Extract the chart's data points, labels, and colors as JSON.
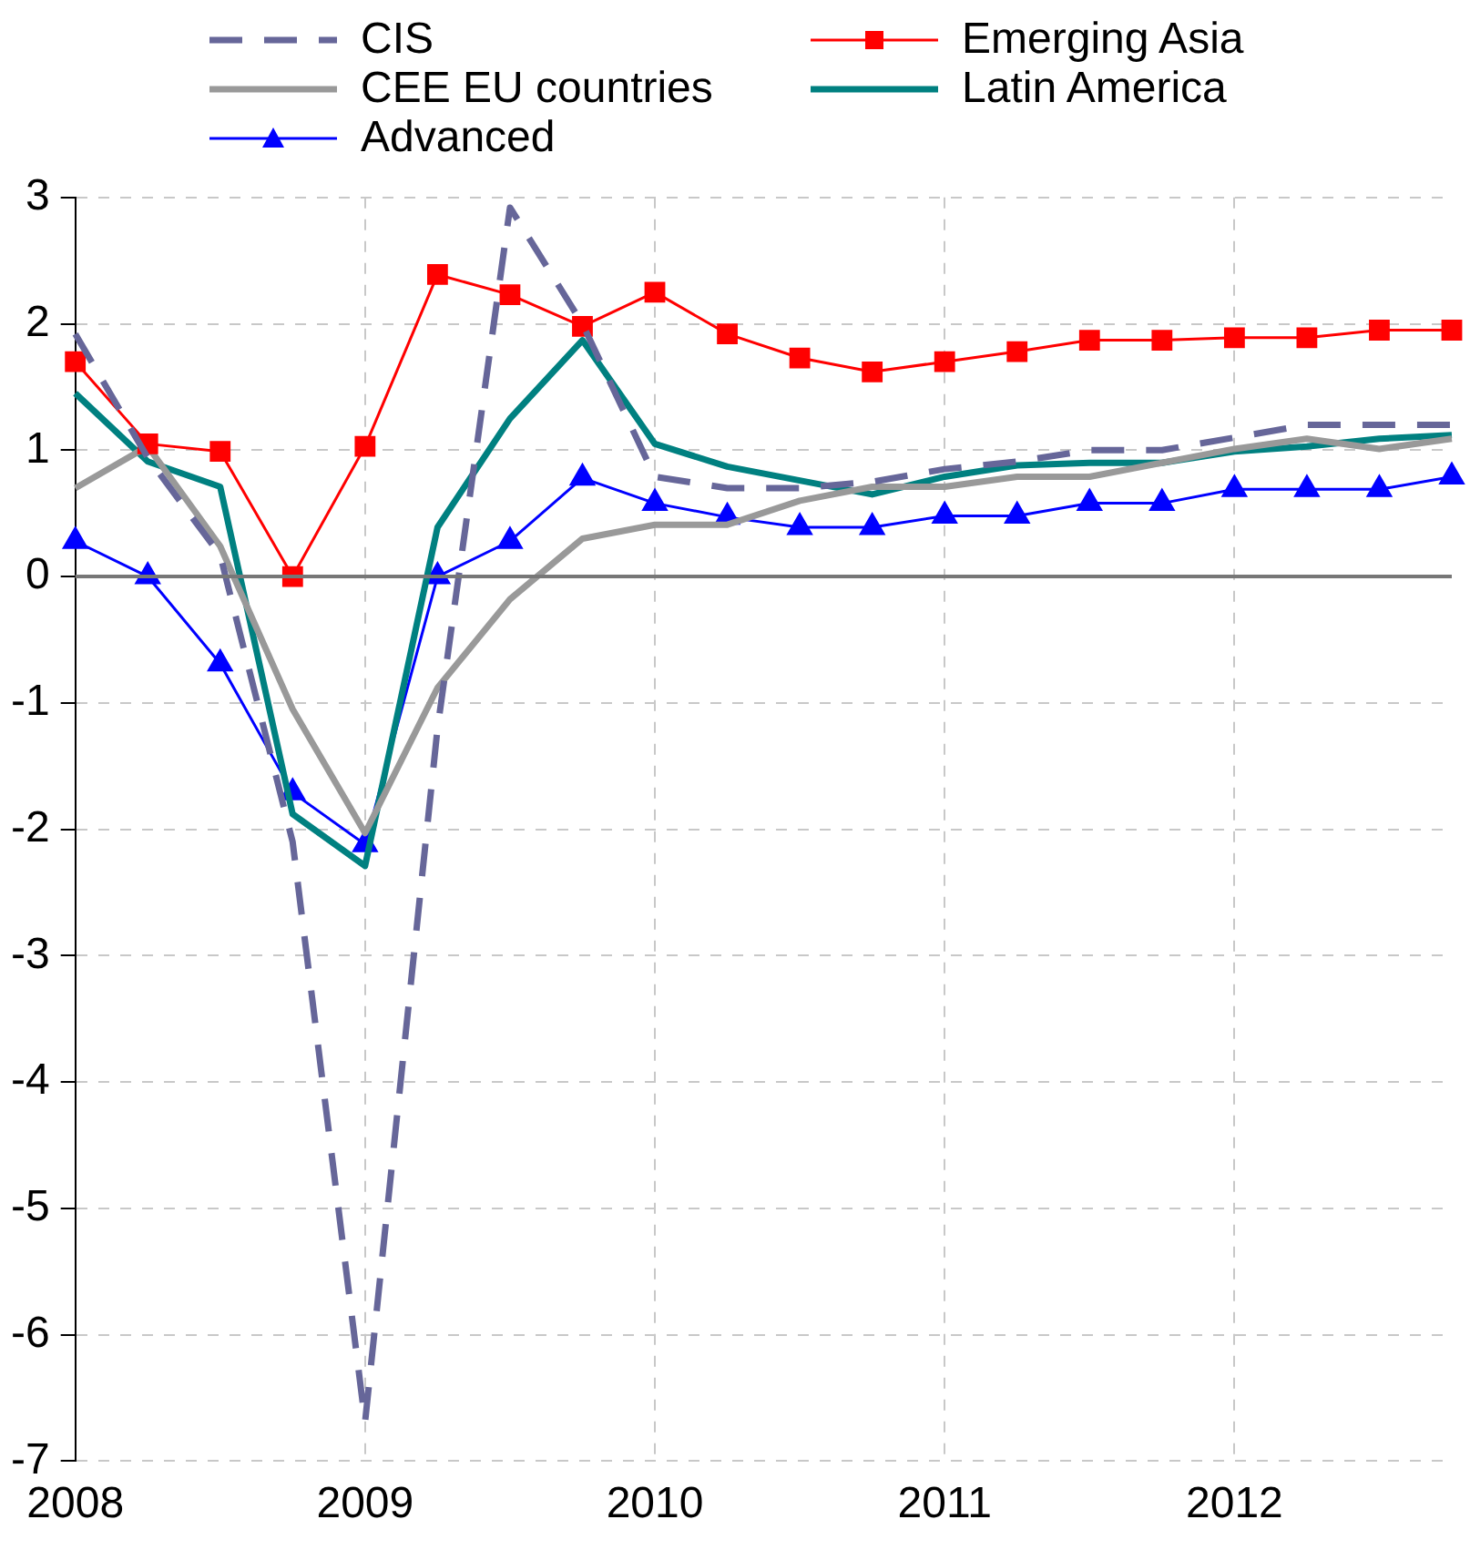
{
  "chart_data": {
    "type": "line",
    "categories": [
      "2008",
      null,
      null,
      null,
      "2009",
      null,
      null,
      null,
      "2010",
      null,
      null,
      null,
      "2011",
      null,
      null,
      null,
      "2012",
      null,
      null,
      null
    ],
    "ylim": [
      -7,
      3
    ],
    "yticks": [
      -7,
      -6,
      -5,
      -4,
      -3,
      -2,
      -1,
      0,
      1,
      2,
      3
    ],
    "grid": true,
    "legend": "top",
    "ref_lines": [
      {
        "axis": "y",
        "value": 0,
        "color": "#777777",
        "line_style": "solid"
      }
    ],
    "series": [
      {
        "name": "CIS",
        "color": "#666699",
        "line_style": "dashed",
        "marker": "none",
        "values": [
          1.92,
          0.94,
          0.17,
          -2.1,
          -6.69,
          -1.2,
          2.92,
          2.0,
          0.79,
          0.7,
          0.7,
          0.75,
          0.85,
          0.91,
          1.0,
          1.0,
          1.1,
          1.2,
          1.2,
          1.2
        ]
      },
      {
        "name": "Emerging Asia",
        "color": "#ff0000",
        "line_style": "solid",
        "marker": "square",
        "values": [
          1.7,
          1.05,
          0.99,
          0.0,
          1.03,
          2.39,
          2.23,
          1.98,
          2.25,
          1.92,
          1.73,
          1.62,
          1.7,
          1.78,
          1.87,
          1.87,
          1.89,
          1.89,
          1.95,
          1.95
        ]
      },
      {
        "name": "CEE EU countries",
        "color": "#999999",
        "line_style": "solid",
        "marker": "none",
        "values": [
          0.7,
          1.03,
          0.24,
          -1.05,
          -2.03,
          -0.88,
          -0.18,
          0.3,
          0.41,
          0.41,
          0.6,
          0.71,
          0.71,
          0.79,
          0.79,
          0.9,
          1.01,
          1.09,
          1.01,
          1.09
        ]
      },
      {
        "name": "Latin America",
        "color": "#008080",
        "line_style": "solid",
        "marker": "none",
        "values": [
          1.45,
          0.91,
          0.71,
          -1.88,
          -2.29,
          0.39,
          1.25,
          1.87,
          1.05,
          0.87,
          0.76,
          0.65,
          0.79,
          0.88,
          0.9,
          0.9,
          0.99,
          1.03,
          1.09,
          1.12
        ]
      },
      {
        "name": "Advanced",
        "color": "#0000ff",
        "line_style": "solid",
        "marker": "triangle",
        "values": [
          0.28,
          0.0,
          -0.69,
          -1.71,
          -2.12,
          0.0,
          0.28,
          0.78,
          0.58,
          0.47,
          0.39,
          0.39,
          0.48,
          0.48,
          0.58,
          0.58,
          0.69,
          0.69,
          0.69,
          0.79
        ]
      }
    ]
  }
}
